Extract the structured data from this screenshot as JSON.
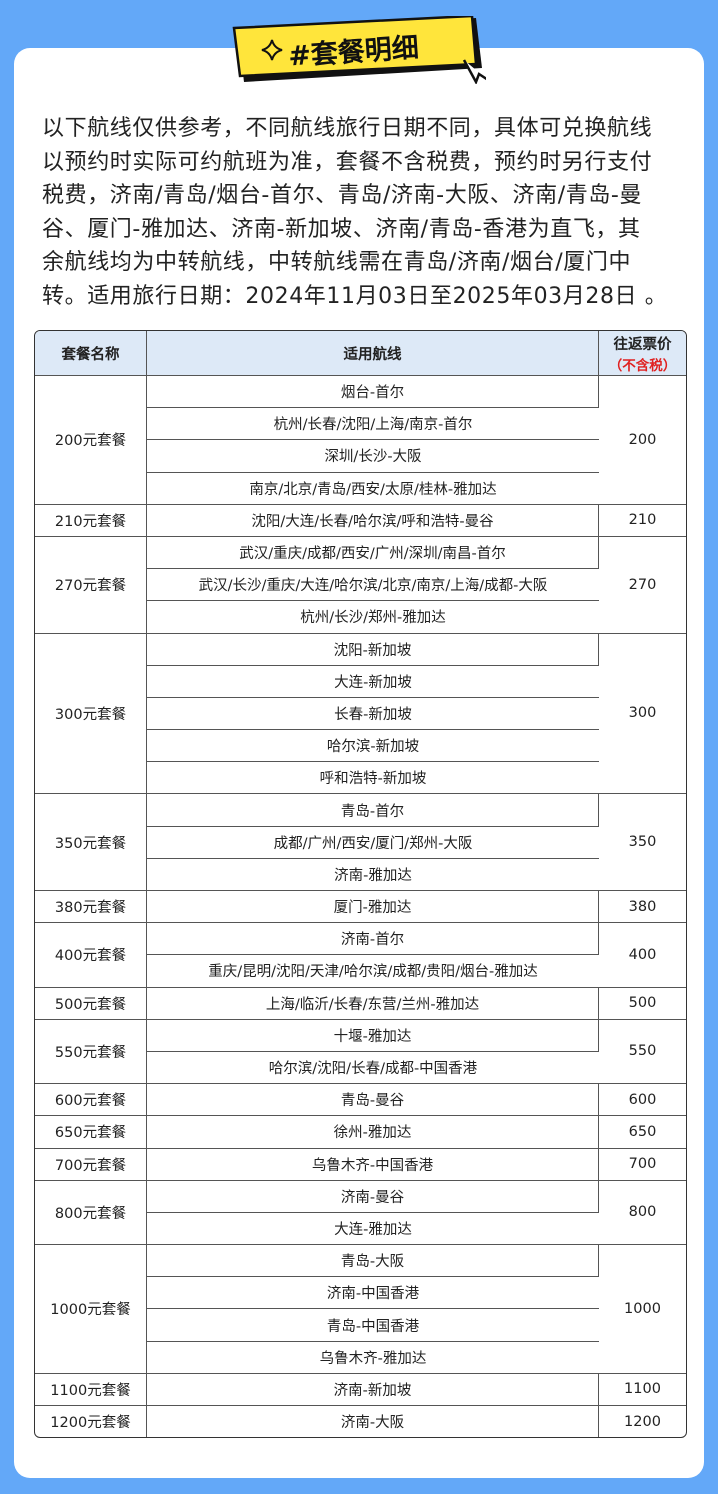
{
  "header": {
    "title": "#套餐明细"
  },
  "intro": {
    "lines": [
      "以下航线仅供参考，不同航线旅行日期不同，具体可兑换航线",
      "以预约时实际可约航班为准，套餐不含税费，预约时另行支付",
      "税费，济南/青岛/烟台-首尔、青岛/济南-大阪、济南/青岛-曼",
      "谷、厦门-雅加达、济南-新加坡、济南/青岛-香港为直飞，其",
      "余航线均为中转航线，中转航线需在青岛/济南/烟台/厦门中",
      "转。适用旅行日期：2024年11月03日至2025年03月28日 。"
    ]
  },
  "table": {
    "headers": [
      "套餐名称",
      "适用航线",
      "往返票价"
    ],
    "price_note": "（不含税）",
    "packages": [
      {
        "name": "200元套餐",
        "routes": [
          "烟台-首尔",
          "杭州/长春/沈阳/上海/南京-首尔",
          "深圳/长沙-大阪",
          "南京/北京/青岛/西安/太原/桂林-雅加达"
        ],
        "price": "200"
      },
      {
        "name": "210元套餐",
        "routes": [
          "沈阳/大连/长春/哈尔滨/呼和浩特-曼谷"
        ],
        "price": "210"
      },
      {
        "name": "270元套餐",
        "routes": [
          "武汉/重庆/成都/西安/广州/深圳/南昌-首尔",
          "武汉/长沙/重庆/大连/哈尔滨/北京/南京/上海/成都-大阪",
          "杭州/长沙/郑州-雅加达"
        ],
        "price": "270"
      },
      {
        "name": "300元套餐",
        "routes": [
          "沈阳-新加坡",
          "大连-新加坡",
          "长春-新加坡",
          "哈尔滨-新加坡",
          "呼和浩特-新加坡"
        ],
        "price": "300"
      },
      {
        "name": "350元套餐",
        "routes": [
          "青岛-首尔",
          "成都/广州/西安/厦门/郑州-大阪",
          "济南-雅加达"
        ],
        "price": "350"
      },
      {
        "name": "380元套餐",
        "routes": [
          "厦门-雅加达"
        ],
        "price": "380"
      },
      {
        "name": "400元套餐",
        "routes": [
          "济南-首尔",
          "重庆/昆明/沈阳/天津/哈尔滨/成都/贵阳/烟台-雅加达"
        ],
        "price": "400"
      },
      {
        "name": "500元套餐",
        "routes": [
          "上海/临沂/长春/东营/兰州-雅加达"
        ],
        "price": "500"
      },
      {
        "name": "550元套餐",
        "routes": [
          "十堰-雅加达",
          "哈尔滨/沈阳/长春/成都-中国香港"
        ],
        "price": "550"
      },
      {
        "name": "600元套餐",
        "routes": [
          "青岛-曼谷"
        ],
        "price": "600"
      },
      {
        "name": "650元套餐",
        "routes": [
          "徐州-雅加达"
        ],
        "price": "650"
      },
      {
        "name": "700元套餐",
        "routes": [
          "乌鲁木齐-中国香港"
        ],
        "price": "700"
      },
      {
        "name": "800元套餐",
        "routes": [
          "济南-曼谷",
          "大连-雅加达"
        ],
        "price": "800"
      },
      {
        "name": "1000元套餐",
        "routes": [
          "青岛-大阪",
          "济南-中国香港",
          "青岛-中国香港",
          "乌鲁木齐-雅加达"
        ],
        "price": "1000"
      },
      {
        "name": "1100元套餐",
        "routes": [
          "济南-新加坡"
        ],
        "price": "1100"
      },
      {
        "name": "1200元套餐",
        "routes": [
          "济南-大阪"
        ],
        "price": "1200"
      }
    ]
  }
}
